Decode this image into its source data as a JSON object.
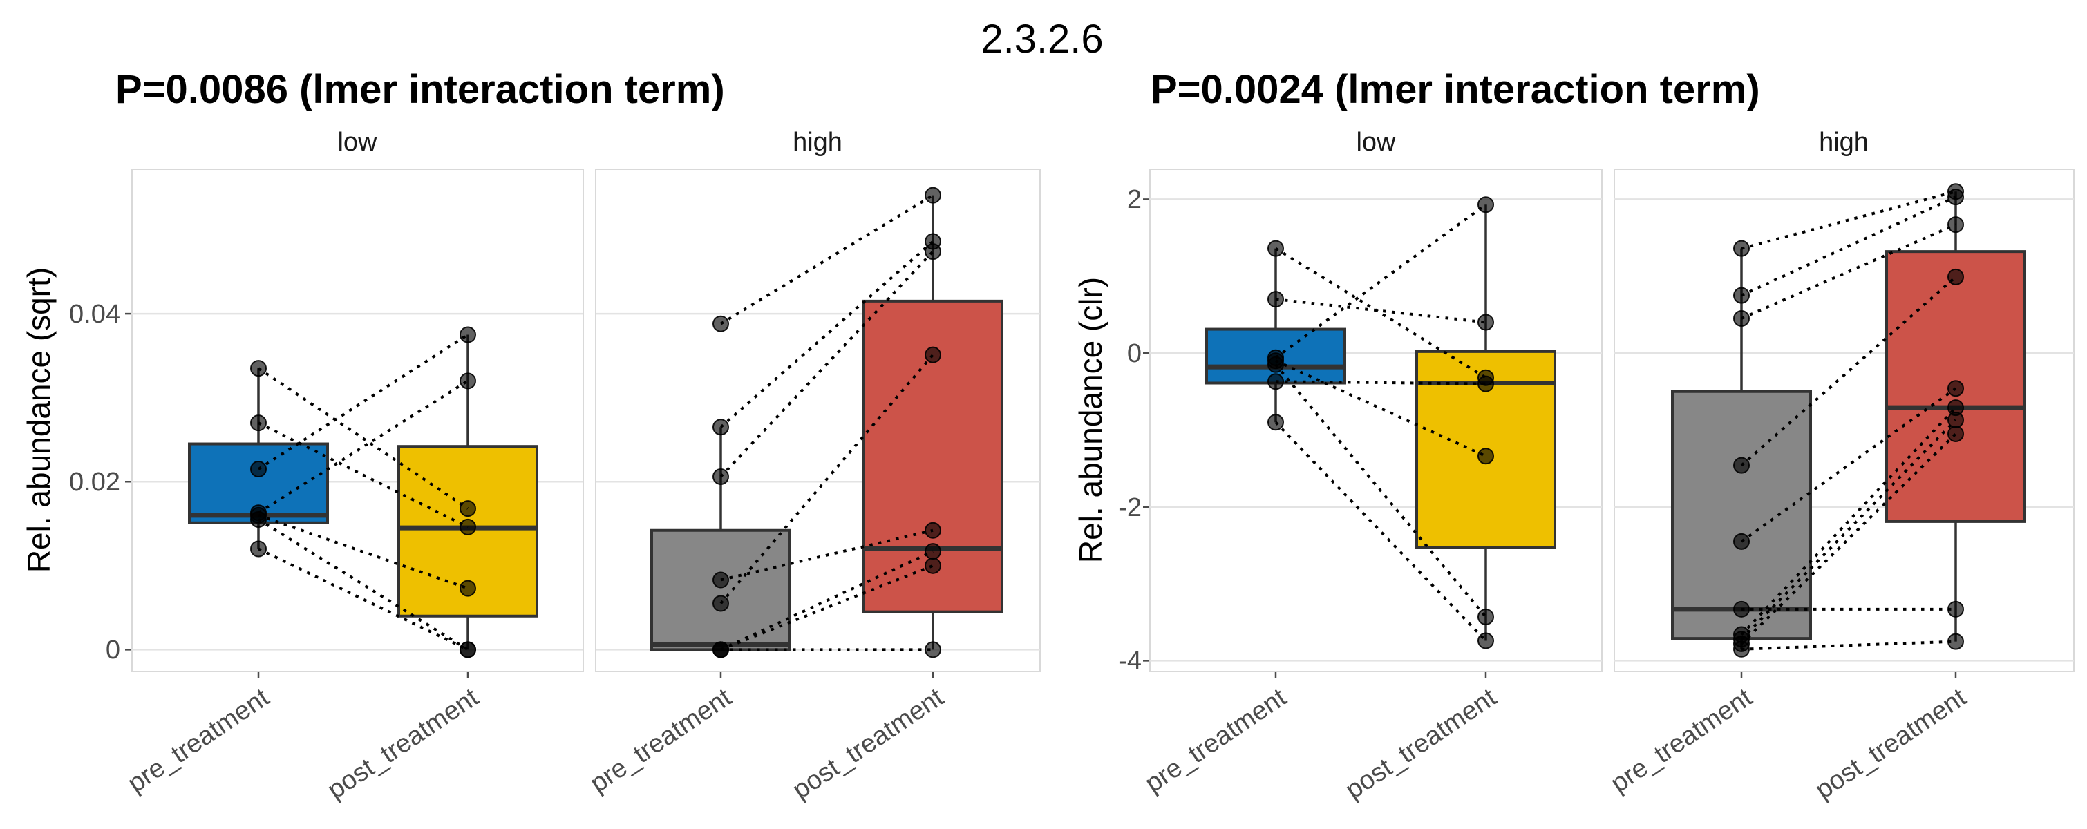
{
  "page": {
    "title": "2.3.2.6"
  },
  "style": {
    "background": "#ffffff",
    "grid_color": "#e3e3e3",
    "panel_border": "#d9d9d9",
    "box_stroke": "#333333",
    "whisker_color": "#333333",
    "pair_line_color": "#000000",
    "point_color": "#000000",
    "tick_color": "#4b4b4b",
    "palette": {
      "pre_low_blue": "#0e72b8",
      "post_low_yellow": "#eec000",
      "pre_high_gray": "#878787",
      "post_high_red": "#cc5349"
    }
  },
  "chart_data": [
    {
      "type": "boxplot-paired",
      "title": "P=0.0086 (lmer interaction term)",
      "ylabel": "Rel. abundance (sqrt)",
      "yticks": [
        0,
        0.02,
        0.04
      ],
      "ytick_labels": [
        "0",
        "0.02",
        "0.04"
      ],
      "ylim": [
        -0.0026,
        0.0572
      ],
      "grid": true,
      "categories": [
        "pre_treatment",
        "post_treatment"
      ],
      "facets": [
        {
          "label": "low",
          "boxes": [
            {
              "category": "pre_treatment",
              "color": "#0e72b8",
              "q1": 0.0151,
              "median": 0.016,
              "q3": 0.0245,
              "whisker_low": 0.012,
              "whisker_high": 0.0335
            },
            {
              "category": "post_treatment",
              "color": "#eec000",
              "q1": 0.004,
              "median": 0.0145,
              "q3": 0.0242,
              "whisker_low": 0.0,
              "whisker_high": 0.0375
            }
          ],
          "pairs": [
            [
              0.0335,
              0.0168
            ],
            [
              0.027,
              0.0146
            ],
            [
              0.0215,
              0.0375
            ],
            [
              0.0163,
              0.032
            ],
            [
              0.016,
              0.0073
            ],
            [
              0.0155,
              0.0
            ],
            [
              0.012,
              0.0
            ]
          ]
        },
        {
          "label": "high",
          "boxes": [
            {
              "category": "pre_treatment",
              "color": "#878787",
              "q1": 0.0,
              "median": 0.0006,
              "q3": 0.0142,
              "whisker_low": 0.0,
              "whisker_high": 0.0265
            },
            {
              "category": "post_treatment",
              "color": "#cc5349",
              "q1": 0.0045,
              "median": 0.012,
              "q3": 0.0415,
              "whisker_low": 0.0,
              "whisker_high": 0.0541
            }
          ],
          "pairs": [
            [
              0.0388,
              0.0541
            ],
            [
              0.0265,
              0.0486
            ],
            [
              0.0206,
              0.0474
            ],
            [
              0.0055,
              0.0351
            ],
            [
              0.0083,
              0.0142
            ],
            [
              0.0,
              0.0117
            ],
            [
              0.0,
              0.01
            ],
            [
              0.0,
              0.0
            ]
          ]
        }
      ]
    },
    {
      "type": "boxplot-paired",
      "title": "P=0.0024 (lmer interaction term)",
      "ylabel": "Rel. abundance (clr)",
      "yticks": [
        2,
        0,
        -2,
        -4
      ],
      "ytick_labels": [
        "2",
        "0",
        "-2",
        "-4"
      ],
      "ylim": [
        -4.14,
        2.39
      ],
      "grid": true,
      "categories": [
        "pre_treatment",
        "post_treatment"
      ],
      "facets": [
        {
          "label": "low",
          "boxes": [
            {
              "category": "pre_treatment",
              "color": "#0e72b8",
              "q1": -0.39,
              "median": -0.18,
              "q3": 0.31,
              "whisker_low": -0.9,
              "whisker_high": 1.36
            },
            {
              "category": "post_treatment",
              "color": "#eec000",
              "q1": -2.53,
              "median": -0.39,
              "q3": 0.02,
              "whisker_low": -3.74,
              "whisker_high": 1.93
            }
          ],
          "pairs": [
            [
              1.36,
              -0.32
            ],
            [
              0.7,
              0.4
            ],
            [
              -0.06,
              1.93
            ],
            [
              -0.1,
              -1.34
            ],
            [
              -0.37,
              -0.4
            ],
            [
              -0.15,
              -3.43
            ],
            [
              -0.9,
              -3.74
            ]
          ]
        },
        {
          "label": "high",
          "boxes": [
            {
              "category": "pre_treatment",
              "color": "#878787",
              "q1": -3.71,
              "median": -3.33,
              "q3": -0.5,
              "whisker_low": -3.85,
              "whisker_high": 1.36
            },
            {
              "category": "post_treatment",
              "color": "#cc5349",
              "q1": -2.19,
              "median": -0.71,
              "q3": 1.32,
              "whisker_low": -3.75,
              "whisker_high": 2.1
            }
          ],
          "pairs": [
            [
              1.36,
              2.1
            ],
            [
              0.75,
              2.03
            ],
            [
              0.45,
              1.67
            ],
            [
              -1.46,
              0.99
            ],
            [
              -2.45,
              -0.46
            ],
            [
              -3.33,
              -3.33
            ],
            [
              -3.66,
              -0.71
            ],
            [
              -3.72,
              -0.87
            ],
            [
              -3.78,
              -1.05
            ],
            [
              -3.85,
              -3.75
            ]
          ]
        }
      ]
    }
  ]
}
